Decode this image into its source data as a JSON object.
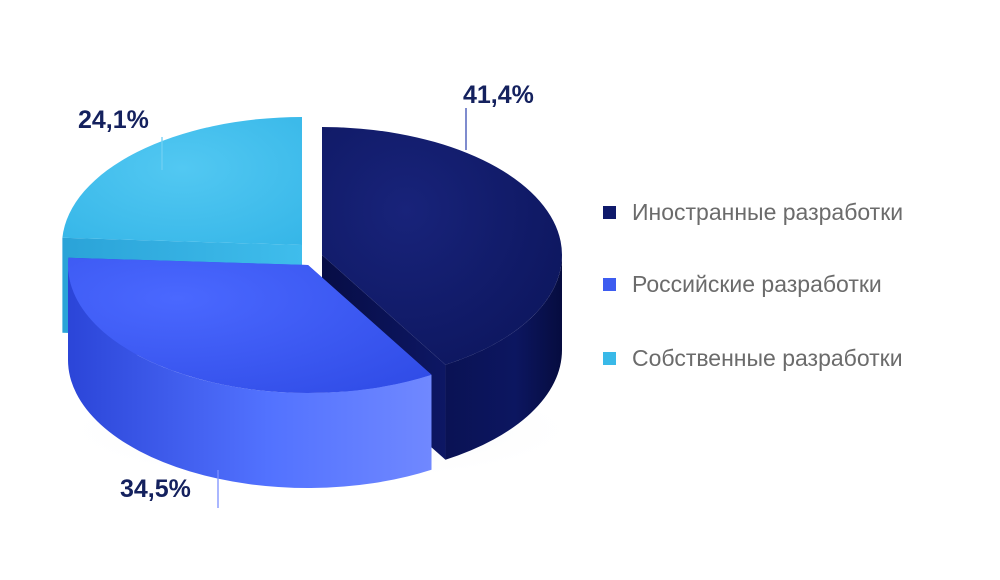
{
  "chart_data": {
    "type": "pie",
    "categories": [
      "Иностранные разработки",
      "Российские разработки",
      "Собственные разработки"
    ],
    "values": [
      41.4,
      34.5,
      24.1
    ],
    "value_labels": [
      "41,4%",
      "34,5%",
      "24,1%"
    ],
    "colors": [
      "#0f1a6b",
      "#3d5cf0",
      "#39b9e8"
    ],
    "title": "",
    "legend_position": "right",
    "style": "3d-exploded"
  },
  "legend": {
    "items": [
      {
        "label": "Иностранные разработки",
        "color": "#0f1a6b"
      },
      {
        "label": "Российские разработки",
        "color": "#3d5cf0"
      },
      {
        "label": "Собственные разработки",
        "color": "#39b9e8"
      }
    ]
  }
}
